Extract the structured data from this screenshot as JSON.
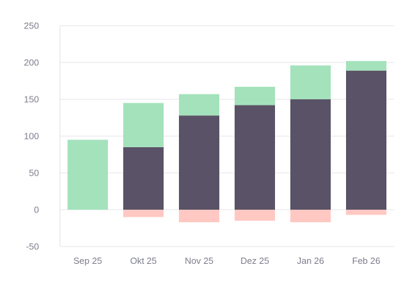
{
  "chart_data": {
    "type": "bar",
    "stacked": true,
    "categories": [
      "Sep 25",
      "Okt 25",
      "Nov 25",
      "Dez 25",
      "Jan 26",
      "Feb 26"
    ],
    "series": [
      {
        "color": "#5a5367",
        "values": [
          0,
          85,
          128,
          142,
          150,
          189
        ]
      },
      {
        "color": "#a4e2bc",
        "values": [
          95,
          60,
          29,
          25,
          46,
          13
        ]
      },
      {
        "color": "#ffc8c3",
        "values": [
          0,
          -10,
          -17,
          -15,
          -17,
          -7
        ]
      }
    ],
    "ylim": [
      -50,
      250
    ],
    "yticks": [
      -50,
      0,
      50,
      100,
      150,
      200,
      250
    ],
    "grid": true,
    "legend": "none"
  }
}
